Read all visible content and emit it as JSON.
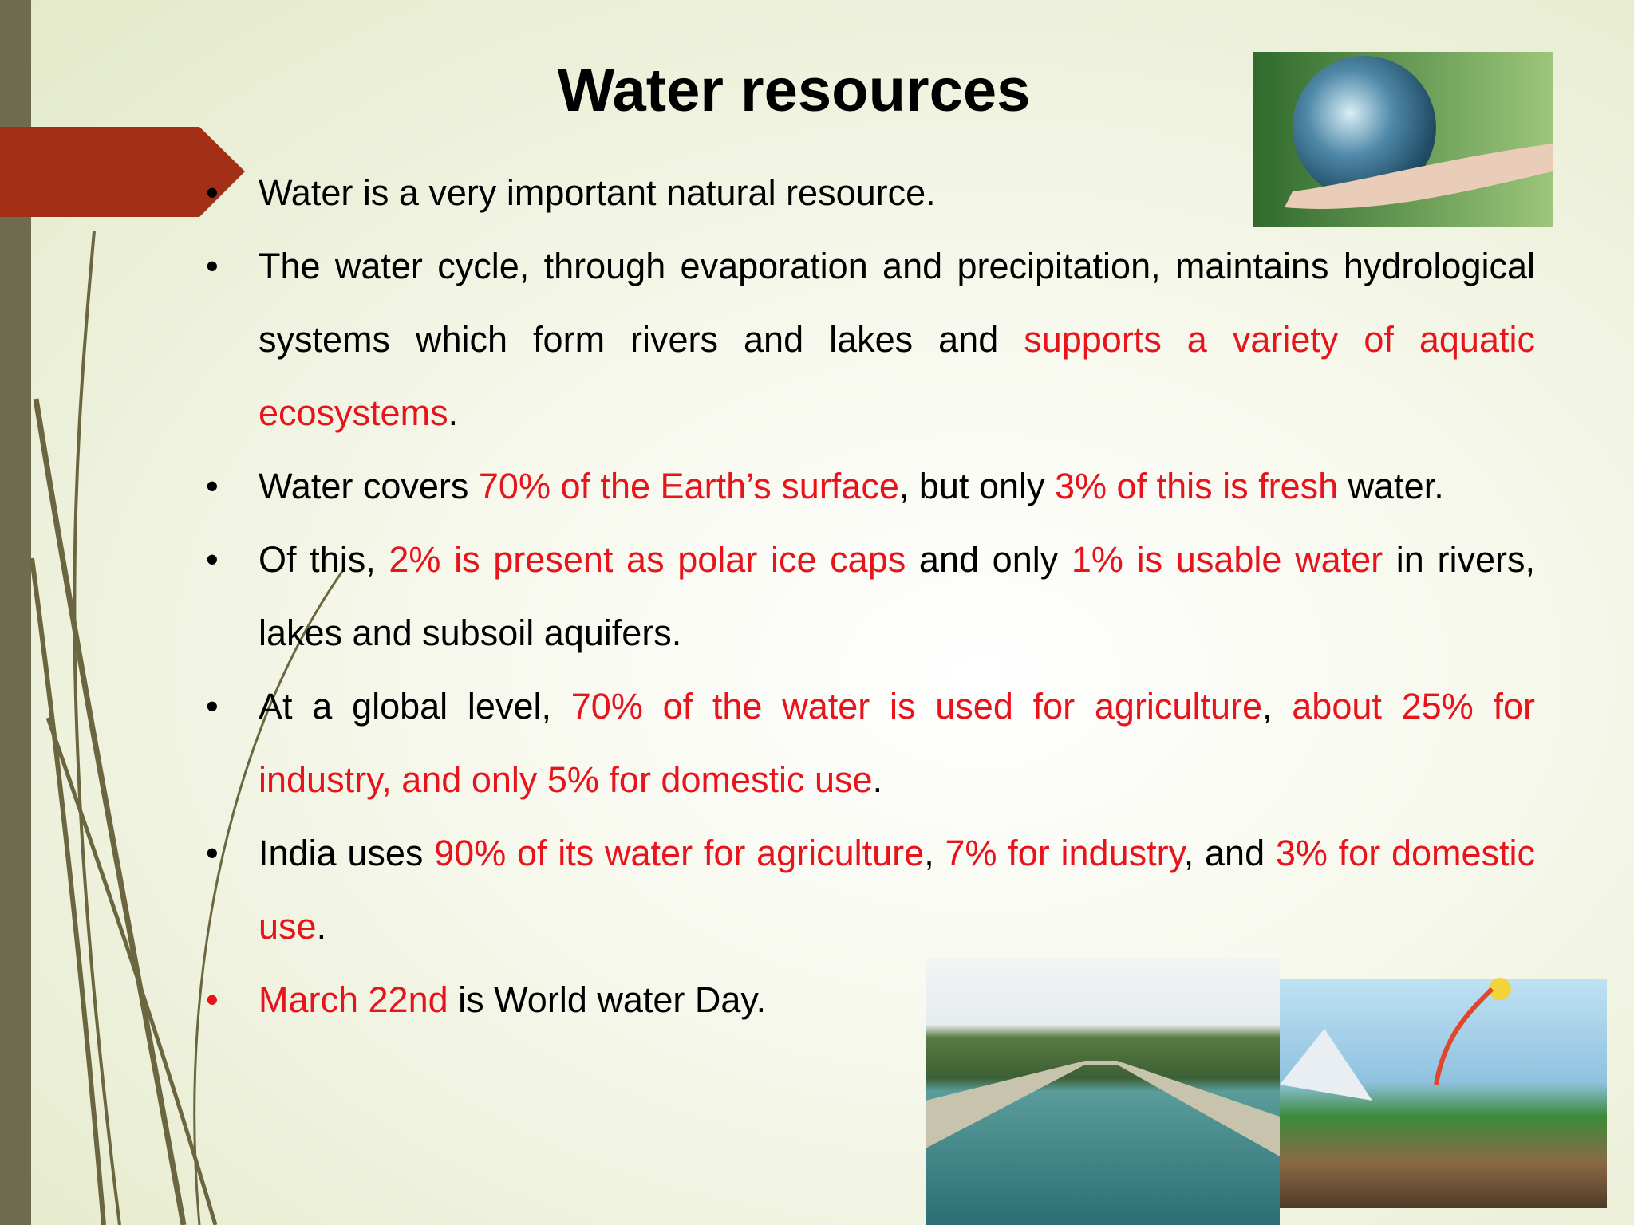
{
  "title": "Water resources",
  "bullets": [
    {
      "segments": [
        {
          "text": "Water is a very important natural resource.",
          "highlight": false
        }
      ]
    },
    {
      "segments": [
        {
          "text": "The water cycle, through evaporation and precipitation, maintains hydrological systems which form rivers and lakes and ",
          "highlight": false
        },
        {
          "text": "supports a variety of aquatic ecosystems",
          "highlight": true
        },
        {
          "text": ".",
          "highlight": false
        }
      ]
    },
    {
      "segments": [
        {
          "text": "Water covers ",
          "highlight": false
        },
        {
          "text": "70% of the Earth’s surface",
          "highlight": true
        },
        {
          "text": ", but only ",
          "highlight": false
        },
        {
          "text": "3% of this is fresh",
          "highlight": true
        },
        {
          "text": " water.",
          "highlight": false
        }
      ]
    },
    {
      "segments": [
        {
          "text": "Of this, ",
          "highlight": false
        },
        {
          "text": "2% is present as polar ice caps",
          "highlight": true
        },
        {
          "text": " and only ",
          "highlight": false
        },
        {
          "text": "1% is usable water",
          "highlight": true
        },
        {
          "text": " in rivers, lakes and subsoil aquifers.",
          "highlight": false
        }
      ]
    },
    {
      "segments": [
        {
          "text": "At a global level, ",
          "highlight": false
        },
        {
          "text": "70% of the water is used for agriculture",
          "highlight": true
        },
        {
          "text": ", ",
          "highlight": false
        },
        {
          "text": "about 25% for industry, and only 5% for domestic use",
          "highlight": true
        },
        {
          "text": ".",
          "highlight": false
        }
      ]
    },
    {
      "segments": [
        {
          "text": "India uses ",
          "highlight": false
        },
        {
          "text": "90% of its water for agriculture",
          "highlight": true
        },
        {
          "text": ", ",
          "highlight": false
        },
        {
          "text": "7% for industry",
          "highlight": true
        },
        {
          "text": ", and ",
          "highlight": false
        },
        {
          "text": "3% for domestic use",
          "highlight": true
        },
        {
          "text": ".",
          "highlight": false
        }
      ]
    },
    {
      "bullet_highlight": true,
      "segments": [
        {
          "text": "March 22nd",
          "highlight": true
        },
        {
          "text": " is World water Day.",
          "highlight": false
        }
      ]
    }
  ]
}
